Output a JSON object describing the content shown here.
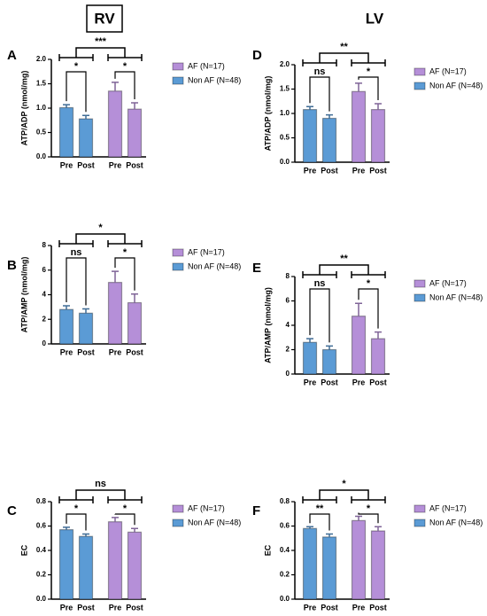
{
  "column_headers": [
    "RV",
    "LV"
  ],
  "chart_data": [
    {
      "type": "bar",
      "panel": "A",
      "y_label": "ATP/ADP (nmol/mg)",
      "categories": [
        "Pre",
        "Post"
      ],
      "ylim": [
        0,
        2
      ],
      "yticks": [
        {
          "value": 0,
          "label": "0.0"
        },
        {
          "value": 0.5,
          "label": "0.5"
        },
        {
          "value": 1,
          "label": "1.0"
        },
        {
          "value": 1.5,
          "label": "1.5"
        },
        {
          "value": 2,
          "label": "2.0"
        }
      ],
      "series": [
        {
          "name": "Non AF (N=48)",
          "color": "#5b9bd5",
          "values": [
            1.01,
            0.78
          ],
          "errors": [
            0.06,
            0.07
          ],
          "significance": "*"
        },
        {
          "name": "AF (N=17)",
          "color": "#b58fd8",
          "values": [
            1.35,
            0.98
          ],
          "errors": [
            0.18,
            0.13
          ],
          "significance": "*"
        }
      ],
      "between_significance": "***"
    },
    {
      "type": "bar",
      "panel": "B",
      "y_label": "ATP/AMP (nmol/mg)",
      "categories": [
        "Pre",
        "Post"
      ],
      "ylim": [
        0,
        8
      ],
      "yticks": [
        0,
        2,
        4,
        6,
        8
      ],
      "series": [
        {
          "name": "Non AF (N=48)",
          "color": "#5b9bd5",
          "values": [
            2.8,
            2.5
          ],
          "errors": [
            0.3,
            0.35
          ],
          "significance": "ns"
        },
        {
          "name": "AF (N=17)",
          "color": "#b58fd8",
          "values": [
            5.0,
            3.35
          ],
          "errors": [
            0.9,
            0.7
          ],
          "significance": "*"
        }
      ],
      "between_significance": "*"
    },
    {
      "type": "bar",
      "panel": "C",
      "y_label": "EC",
      "categories": [
        "Pre",
        "Post"
      ],
      "ylim": [
        0,
        0.8
      ],
      "yticks": [
        {
          "value": 0,
          "label": "0.0"
        },
        0.2,
        0.4,
        0.6,
        0.8
      ],
      "series": [
        {
          "name": "Non AF (N=48)",
          "color": "#5b9bd5",
          "values": [
            0.57,
            0.515
          ],
          "errors": [
            0.02,
            0.02
          ],
          "significance": "*"
        },
        {
          "name": "AF (N=17)",
          "color": "#b58fd8",
          "values": [
            0.635,
            0.55
          ],
          "errors": [
            0.035,
            0.03
          ],
          "significance": "*"
        }
      ],
      "between_significance": "ns"
    },
    {
      "type": "bar",
      "panel": "D",
      "y_label": "ATP/ADP (nmol/mg)",
      "categories": [
        "Pre",
        "Post"
      ],
      "ylim": [
        0,
        2
      ],
      "yticks": [
        {
          "value": 0,
          "label": "0.0"
        },
        {
          "value": 0.5,
          "label": "0.5"
        },
        {
          "value": 1,
          "label": "1.0"
        },
        {
          "value": 1.5,
          "label": "1.5"
        },
        {
          "value": 2,
          "label": "2.0"
        }
      ],
      "series": [
        {
          "name": "Non AF (N=48)",
          "color": "#5b9bd5",
          "values": [
            1.08,
            0.9
          ],
          "errors": [
            0.06,
            0.07
          ],
          "significance": "ns"
        },
        {
          "name": "AF (N=17)",
          "color": "#b58fd8",
          "values": [
            1.45,
            1.08
          ],
          "errors": [
            0.17,
            0.12
          ],
          "significance": "*"
        }
      ],
      "between_significance": "**"
    },
    {
      "type": "bar",
      "panel": "E",
      "y_label": "ATP/AMP (nmol/mg)",
      "categories": [
        "Pre",
        "Post"
      ],
      "ylim": [
        0,
        8
      ],
      "yticks": [
        0,
        2,
        4,
        6,
        8
      ],
      "series": [
        {
          "name": "Non AF (N=48)",
          "color": "#5b9bd5",
          "values": [
            2.6,
            2.0
          ],
          "errors": [
            0.3,
            0.3
          ],
          "significance": "ns"
        },
        {
          "name": "AF (N=17)",
          "color": "#b58fd8",
          "values": [
            4.75,
            2.9
          ],
          "errors": [
            1.05,
            0.55
          ],
          "significance": "*"
        }
      ],
      "between_significance": "**"
    },
    {
      "type": "bar",
      "panel": "F",
      "y_label": "EC",
      "categories": [
        "Pre",
        "Post"
      ],
      "ylim": [
        0,
        0.8
      ],
      "yticks": [
        {
          "value": 0,
          "label": "0.0"
        },
        0.2,
        0.4,
        0.6,
        0.8
      ],
      "series": [
        {
          "name": "Non AF (N=48)",
          "color": "#5b9bd5",
          "values": [
            0.58,
            0.51
          ],
          "errors": [
            0.015,
            0.025
          ],
          "significance": "**"
        },
        {
          "name": "AF (N=17)",
          "color": "#b58fd8",
          "values": [
            0.645,
            0.56
          ],
          "errors": [
            0.035,
            0.035
          ],
          "significance": "*"
        }
      ],
      "between_significance": "*"
    }
  ]
}
